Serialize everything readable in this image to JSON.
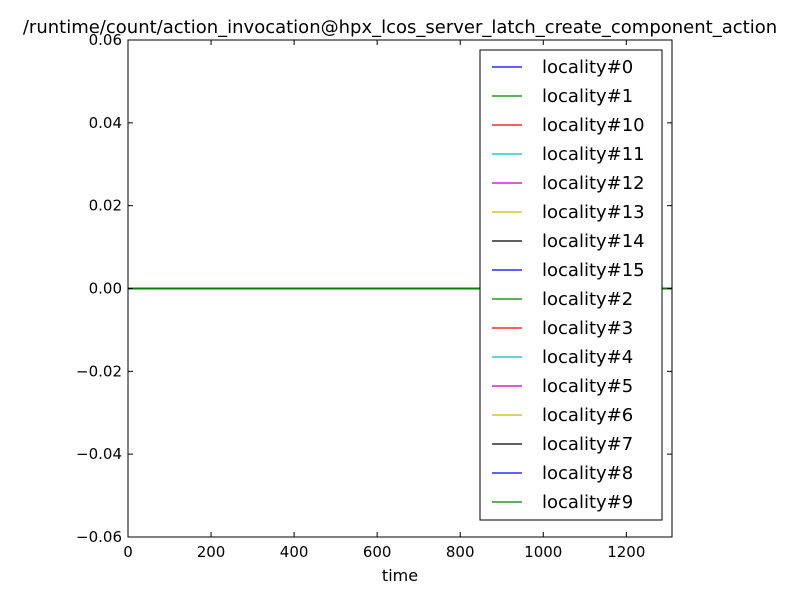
{
  "chart_data": {
    "type": "line",
    "title": "/runtime/count/action_invocation@hpx_lcos_server_latch_create_component_action",
    "xlabel": "time",
    "ylabel": "",
    "xlim": [
      0,
      1310
    ],
    "ylim": [
      -0.06,
      0.06
    ],
    "x_ticks": [
      0,
      200,
      400,
      600,
      800,
      1000,
      1200
    ],
    "x_tick_labels": [
      "0",
      "200",
      "400",
      "600",
      "800",
      "1000",
      "1200"
    ],
    "y_ticks": [
      -0.06,
      -0.04,
      -0.02,
      0.0,
      0.02,
      0.04,
      0.06
    ],
    "y_tick_labels": [
      "−0.06",
      "−0.04",
      "−0.02",
      "0.00",
      "0.02",
      "0.04",
      "0.06"
    ],
    "grid": false,
    "legend_position": "top-right",
    "x": [
      0,
      1310
    ],
    "series": [
      {
        "name": "locality#0",
        "color": "#0000ff",
        "values": [
          0,
          0
        ]
      },
      {
        "name": "locality#1",
        "color": "#008000",
        "values": [
          0,
          0
        ]
      },
      {
        "name": "locality#10",
        "color": "#ff0000",
        "values": [
          0,
          0
        ]
      },
      {
        "name": "locality#11",
        "color": "#00bfbf",
        "values": [
          0,
          0
        ]
      },
      {
        "name": "locality#12",
        "color": "#bf00bf",
        "values": [
          0,
          0
        ]
      },
      {
        "name": "locality#13",
        "color": "#bfbf00",
        "values": [
          0,
          0
        ]
      },
      {
        "name": "locality#14",
        "color": "#000000",
        "values": [
          0,
          0
        ]
      },
      {
        "name": "locality#15",
        "color": "#0000ff",
        "values": [
          0,
          0
        ]
      },
      {
        "name": "locality#2",
        "color": "#008000",
        "values": [
          0,
          0
        ]
      },
      {
        "name": "locality#3",
        "color": "#ff0000",
        "values": [
          0,
          0
        ]
      },
      {
        "name": "locality#4",
        "color": "#00bfbf",
        "values": [
          0,
          0
        ]
      },
      {
        "name": "locality#5",
        "color": "#bf00bf",
        "values": [
          0,
          0
        ]
      },
      {
        "name": "locality#6",
        "color": "#bfbf00",
        "values": [
          0,
          0
        ]
      },
      {
        "name": "locality#7",
        "color": "#000000",
        "values": [
          0,
          0
        ]
      },
      {
        "name": "locality#8",
        "color": "#0000ff",
        "values": [
          0,
          0
        ]
      },
      {
        "name": "locality#9",
        "color": "#008000",
        "values": [
          0,
          0
        ]
      }
    ]
  }
}
